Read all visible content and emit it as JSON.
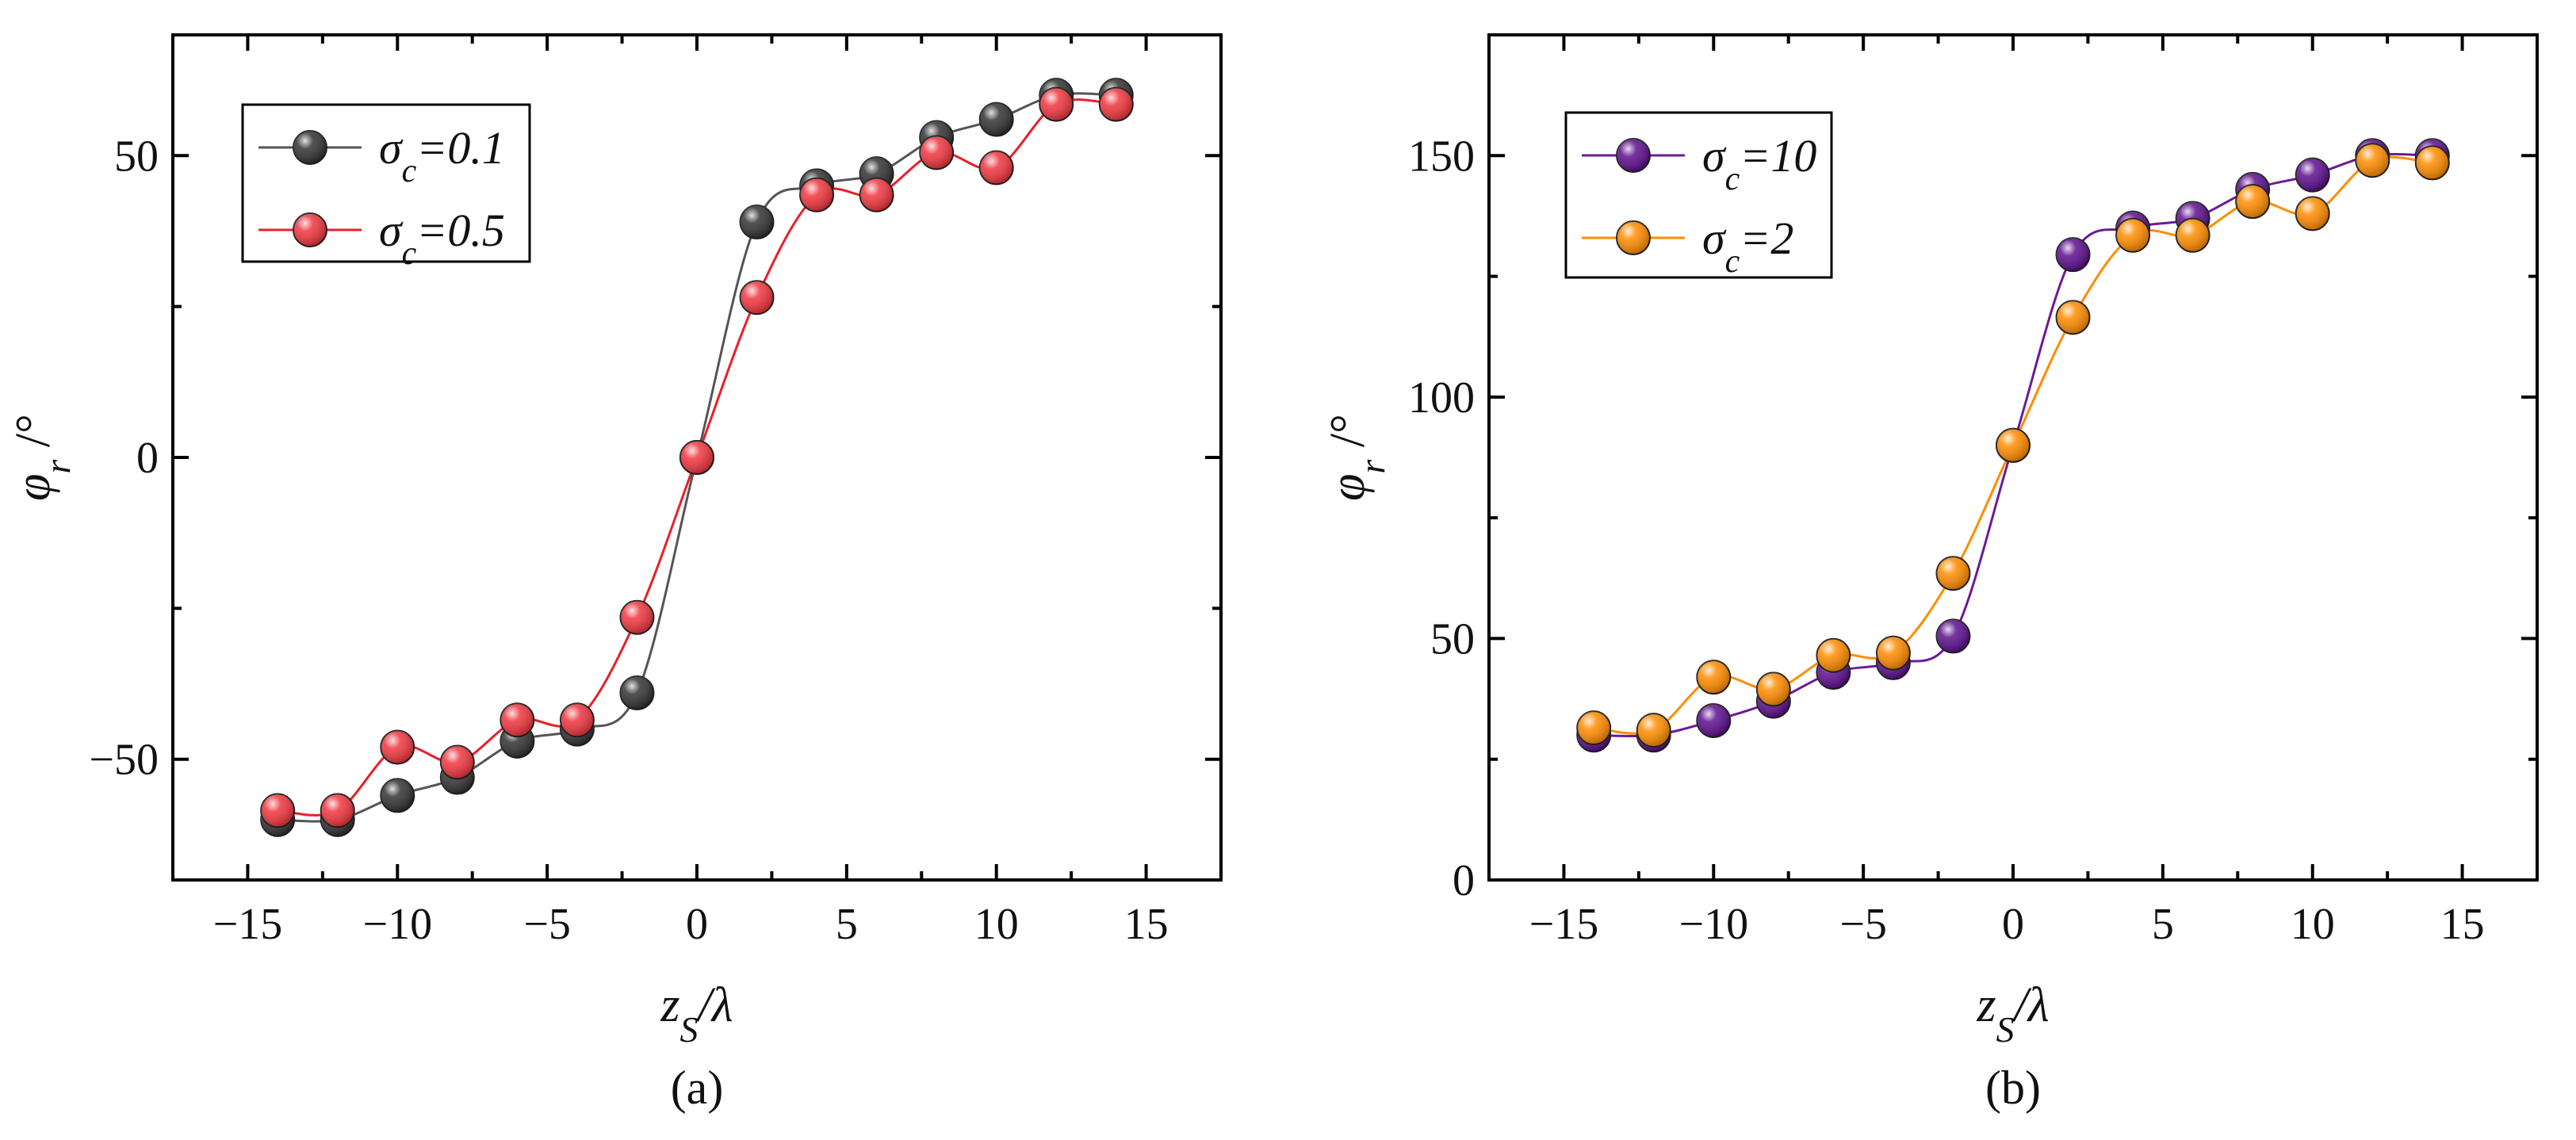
{
  "chart_data": [
    {
      "type": "line",
      "panel_label": "(a)",
      "title": "",
      "xlabel_main": "z",
      "xlabel_sub": "S",
      "xlabel_tail": "/λ",
      "ylabel_main": "φ",
      "ylabel_sub": "r",
      "ylabel_tail": " /°",
      "xlim": [
        -17.5,
        17.5
      ],
      "ylim": [
        -70,
        70
      ],
      "xticks": [
        -15,
        -10,
        -5,
        0,
        5,
        10,
        15
      ],
      "xtick_labels": [
        "−15",
        "−10",
        "−5",
        "0",
        "5",
        "10",
        "15"
      ],
      "yticks": [
        -50,
        0,
        50
      ],
      "ytick_labels": [
        "−50",
        "0",
        "50"
      ],
      "grid": false,
      "legend_position": "top-left",
      "x": [
        -14,
        -12,
        -10,
        -8,
        -6,
        -4,
        -2,
        0,
        2,
        4,
        6,
        8,
        10,
        12,
        14
      ],
      "series": [
        {
          "name": "σc=0.1",
          "legend_main": "σ",
          "legend_sub": "c",
          "legend_tail": "=0.1",
          "color": "#555555",
          "marker_fill": "#333333",
          "values": [
            -60,
            -60,
            -56,
            -53,
            -47,
            -45,
            -39,
            0,
            39,
            45,
            47,
            53,
            56,
            60,
            60
          ]
        },
        {
          "name": "σc=0.5",
          "legend_main": "σ",
          "legend_sub": "c",
          "legend_tail": "=0.5",
          "color": "#e8202a",
          "marker_fill": "#f0363f",
          "values": [
            -58.5,
            -58.5,
            -48,
            -50.5,
            -43.5,
            -43.5,
            -26.5,
            0,
            26.5,
            43.5,
            43.5,
            50.5,
            48,
            58.5,
            58.5
          ]
        }
      ]
    },
    {
      "type": "line",
      "panel_label": "(b)",
      "title": "",
      "xlabel_main": "z",
      "xlabel_sub": "S",
      "xlabel_tail": "/λ",
      "ylabel_main": "φ",
      "ylabel_sub": "r",
      "ylabel_tail": " /°",
      "xlim": [
        -17.5,
        17.5
      ],
      "ylim": [
        0,
        175
      ],
      "xticks": [
        -15,
        -10,
        -5,
        0,
        5,
        10,
        15
      ],
      "xtick_labels": [
        "−15",
        "−10",
        "−5",
        "0",
        "5",
        "10",
        "15"
      ],
      "yticks": [
        0,
        50,
        100,
        150
      ],
      "ytick_labels": [
        "0",
        "50",
        "100",
        "150"
      ],
      "grid": false,
      "legend_position": "top-left",
      "x": [
        -14,
        -12,
        -10,
        -8,
        -6,
        -4,
        -2,
        0,
        2,
        4,
        6,
        8,
        10,
        12,
        14
      ],
      "series": [
        {
          "name": "σc=10",
          "legend_main": "σ",
          "legend_sub": "c",
          "legend_tail": "=10",
          "color": "#6a1b9a",
          "marker_fill": "#5e0f8e",
          "values": [
            30,
            30,
            33,
            37,
            43,
            45,
            50.5,
            90,
            129.5,
            135,
            137,
            143,
            146,
            150,
            150
          ]
        },
        {
          "name": "σc=2",
          "legend_main": "σ",
          "legend_sub": "c",
          "legend_tail": "=2",
          "color": "#ff8c00",
          "marker_fill": "#ff8c00",
          "values": [
            31.5,
            31,
            42,
            39.5,
            46.5,
            47,
            63.5,
            90,
            116.5,
            133.5,
            133.5,
            140.5,
            138,
            149,
            148.5
          ]
        }
      ]
    }
  ]
}
